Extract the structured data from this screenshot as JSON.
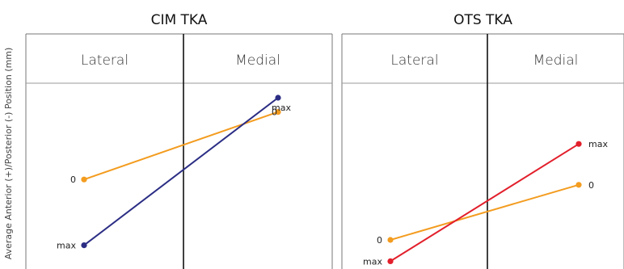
{
  "ylabel": "Average Anterior (+)/Posterior (-) Position (mm)",
  "chart_data": [
    {
      "type": "line",
      "title": "CIM TKA",
      "categories": [
        "Lateral",
        "Medial"
      ],
      "ylim": [
        0,
        1
      ],
      "series": [
        {
          "values": [
            0.49,
            0.87
          ],
          "point_labels": [
            "0",
            "0"
          ],
          "color": "#f39c1f"
        },
        {
          "values": [
            0.12,
            0.95
          ],
          "point_labels": [
            "max",
            "max"
          ],
          "color": "#2b2d84"
        }
      ]
    },
    {
      "type": "line",
      "title": "OTS TKA",
      "categories": [
        "Lateral",
        "Medial"
      ],
      "ylim": [
        0,
        1
      ],
      "series": [
        {
          "values": [
            0.15,
            0.46
          ],
          "point_labels": [
            "0",
            "0"
          ],
          "color": "#f39c1f"
        },
        {
          "values": [
            0.03,
            0.69
          ],
          "point_labels": [
            "max",
            "max"
          ],
          "color": "#e21f2b"
        }
      ]
    }
  ]
}
